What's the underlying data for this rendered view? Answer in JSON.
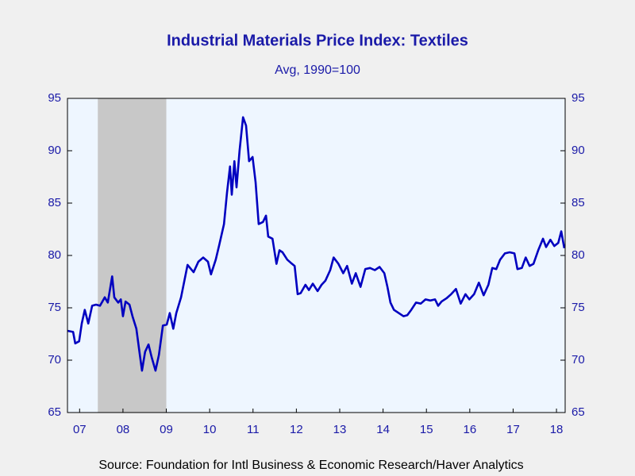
{
  "chart_data": {
    "type": "line",
    "title": "Industrial Materials Price Index: Textiles",
    "subtitle": "Avg, 1990=100",
    "source": "Source:  Foundation for Intl Business & Economic Research/Haver Analytics",
    "x": [
      2007.22,
      2007.35,
      2007.4,
      2007.49,
      2007.55,
      2007.62,
      2007.7,
      2007.79,
      2007.88,
      2007.97,
      2008.08,
      2008.15,
      2008.25,
      2008.3,
      2008.39,
      2008.45,
      2008.5,
      2008.56,
      2008.65,
      2008.72,
      2008.81,
      2008.89,
      2008.94,
      2009.01,
      2009.09,
      2009.16,
      2009.25,
      2009.33,
      2009.42,
      2009.51,
      2009.58,
      2009.66,
      2009.73,
      2009.84,
      2009.99,
      2010.13,
      2010.24,
      2010.35,
      2010.46,
      2010.53,
      2010.64,
      2010.72,
      2010.83,
      2010.9,
      2010.97,
      2011.01,
      2011.07,
      2011.12,
      2011.19,
      2011.27,
      2011.34,
      2011.41,
      2011.49,
      2011.56,
      2011.63,
      2011.73,
      2011.8,
      2011.85,
      2011.95,
      2012.04,
      2012.11,
      2012.18,
      2012.29,
      2012.37,
      2012.46,
      2012.53,
      2012.6,
      2012.71,
      2012.79,
      2012.88,
      2012.99,
      2013.08,
      2013.17,
      2013.28,
      2013.36,
      2013.47,
      2013.58,
      2013.67,
      2013.78,
      2013.87,
      2013.98,
      2014.09,
      2014.2,
      2014.31,
      2014.42,
      2014.53,
      2014.6,
      2014.67,
      2014.75,
      2014.86,
      2014.97,
      2015.06,
      2015.15,
      2015.26,
      2015.37,
      2015.48,
      2015.59,
      2015.7,
      2015.77,
      2015.85,
      2015.96,
      2016.07,
      2016.18,
      2016.29,
      2016.4,
      2016.49,
      2016.6,
      2016.71,
      2016.82,
      2016.93,
      2017.02,
      2017.11,
      2017.2,
      2017.31,
      2017.42,
      2017.53,
      2017.6,
      2017.7,
      2017.79,
      2017.88,
      2017.97,
      2018.08,
      2018.19,
      2018.26,
      2018.36,
      2018.45,
      2018.54,
      2018.61,
      2018.68
    ],
    "series": [
      {
        "name": "Textiles",
        "color": "#0000c0",
        "values": [
          72.8,
          72.7,
          71.6,
          71.8,
          73.5,
          74.8,
          73.5,
          75.2,
          75.3,
          75.2,
          76,
          75.5,
          78,
          76,
          75.5,
          75.8,
          74.2,
          75.6,
          75.3,
          74.2,
          73,
          70.5,
          69,
          70.8,
          71.5,
          70.3,
          69,
          70.5,
          73.3,
          73.4,
          74.5,
          73,
          74.5,
          76,
          79.1,
          78.4,
          79.4,
          79.8,
          79.4,
          78.2,
          79.6,
          81,
          83,
          86,
          88.5,
          85.8,
          89,
          86.5,
          90,
          93.2,
          92.4,
          89,
          89.4,
          87,
          83,
          83.2,
          83.8,
          81.8,
          81.6,
          79.2,
          80.5,
          80.3,
          79.6,
          79.3,
          79,
          76.3,
          76.4,
          77.2,
          76.7,
          77.3,
          76.6,
          77.2,
          77.6,
          78.6,
          79.8,
          79.2,
          78.3,
          79,
          77.3,
          78.3,
          77,
          78.7,
          78.8,
          78.6,
          78.9,
          78.3,
          77,
          75.5,
          74.8,
          74.5,
          74.2,
          74.3,
          74.8,
          75.5,
          75.4,
          75.8,
          75.7,
          75.8,
          75.2,
          75.6,
          75.9,
          76.3,
          76.8,
          75.4,
          76.3,
          75.8,
          76.3,
          77.4,
          76.2,
          77.2,
          78.8,
          78.7,
          79.6,
          80.2,
          80.3,
          80.2,
          78.7,
          78.8,
          79.8,
          79,
          79.2,
          80.5,
          81.6,
          80.8,
          81.5,
          80.9,
          81.2,
          82.3,
          80.7
        ]
      }
    ],
    "recession": [
      2007.92,
      2009.5
    ],
    "xlim": [
      2007.22,
      2018.7
    ],
    "xticks": [
      {
        "value": 2007.5,
        "label": "07"
      },
      {
        "value": 2008.5,
        "label": "08"
      },
      {
        "value": 2009.5,
        "label": "09"
      },
      {
        "value": 2010.5,
        "label": "10"
      },
      {
        "value": 2011.5,
        "label": "11"
      },
      {
        "value": 2012.5,
        "label": "12"
      },
      {
        "value": 2013.5,
        "label": "13"
      },
      {
        "value": 2014.5,
        "label": "14"
      },
      {
        "value": 2015.5,
        "label": "15"
      },
      {
        "value": 2016.5,
        "label": "16"
      },
      {
        "value": 2017.5,
        "label": "17"
      },
      {
        "value": 2018.5,
        "label": "18"
      }
    ],
    "ylim": [
      65,
      95
    ],
    "yticks": [
      65,
      70,
      75,
      80,
      85,
      90,
      95
    ],
    "y2lim": [
      65,
      95
    ],
    "y2ticks": [
      65,
      70,
      75,
      80,
      85,
      90,
      95
    ]
  }
}
